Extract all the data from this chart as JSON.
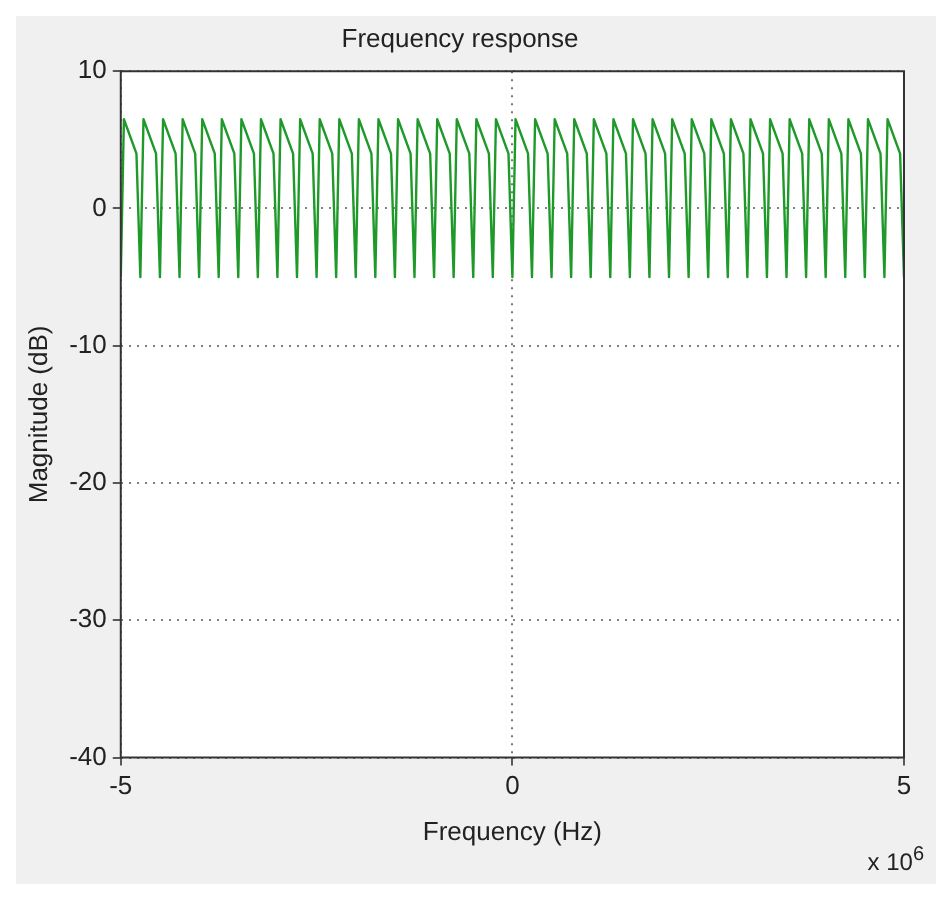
{
  "chart_data": {
    "type": "line",
    "title": "Frequency response",
    "xlabel": "Frequency (Hz)",
    "ylabel": "Magnitude (dB)",
    "annotations": [
      "x 10$^{6}$"
    ],
    "series": [
      {
        "color": "#1f9a2a",
        "x": [
          -5,
          -4.96,
          -4.8,
          -4.75,
          -4.71,
          -4.55,
          -4.5,
          -4.46,
          -4.3,
          -4.25,
          -4.21,
          -4.05,
          -4,
          -3.96,
          -3.8,
          -3.75,
          -3.71,
          -3.55,
          -3.5,
          -3.46,
          -3.3,
          -3.25,
          -3.21,
          -3.05,
          -3,
          -2.96,
          -2.8,
          -2.75,
          -2.71,
          -2.55,
          -2.5,
          -2.46,
          -2.3,
          -2.25,
          -2.21,
          -2.05,
          -2,
          -1.96,
          -1.8,
          -1.75,
          -1.71,
          -1.55,
          -1.5,
          -1.46,
          -1.3,
          -1.25,
          -1.21,
          -1.05,
          -1,
          -0.96,
          -0.8,
          -0.75,
          -0.71,
          -0.55,
          -0.5,
          -0.46,
          -0.3,
          -0.25,
          -0.21,
          -0.05,
          0,
          0.04,
          0.2,
          0.25,
          0.29,
          0.45,
          0.5,
          0.54,
          0.7,
          0.75,
          0.79,
          0.95,
          1,
          1.04,
          1.2,
          1.25,
          1.29,
          1.45,
          1.5,
          1.54,
          1.7,
          1.75,
          1.79,
          1.95,
          2,
          2.04,
          2.2,
          2.25,
          2.29,
          2.45,
          2.5,
          2.54,
          2.7,
          2.75,
          2.79,
          2.95,
          3,
          3.04,
          3.2,
          3.25,
          3.29,
          3.45,
          3.5,
          3.54,
          3.7,
          3.75,
          3.79,
          3.95,
          4,
          4.04,
          4.2,
          4.25,
          4.29,
          4.45,
          4.5,
          4.54,
          4.7,
          4.75,
          4.79,
          4.95,
          5
        ],
        "values": [
          -5,
          6.5,
          4,
          -5,
          6.5,
          4,
          -5,
          6.5,
          4,
          -5,
          6.5,
          4,
          -5,
          6.5,
          4,
          -5,
          6.5,
          4,
          -5,
          6.5,
          4,
          -5,
          6.5,
          4,
          -5,
          6.5,
          4,
          -5,
          6.5,
          4,
          -5,
          6.5,
          4,
          -5,
          6.5,
          4,
          -5,
          6.5,
          4,
          -5,
          6.5,
          4,
          -5,
          6.5,
          4,
          -5,
          6.5,
          4,
          -5,
          6.5,
          4,
          -5,
          6.5,
          4,
          -5,
          6.5,
          4,
          -5,
          6.5,
          4,
          -5,
          6.5,
          4,
          -5,
          6.5,
          4,
          -5,
          6.5,
          4,
          -5,
          6.5,
          4,
          -5,
          6.5,
          4,
          -5,
          6.5,
          4,
          -5,
          6.5,
          4,
          -5,
          6.5,
          4,
          -5,
          6.5,
          4,
          -5,
          6.5,
          4,
          -5,
          6.5,
          4,
          -5,
          6.5,
          4,
          -5,
          6.5,
          4,
          -5,
          6.5,
          4,
          -5,
          6.5,
          4,
          -5,
          6.5,
          4,
          -5,
          6.5,
          4,
          -5,
          6.5,
          4,
          -5,
          6.5,
          4,
          -5,
          6.5,
          4,
          -5
        ]
      }
    ],
    "xlim": [
      -5,
      5
    ],
    "xticks": [
      -5,
      0,
      5
    ],
    "ylim": [
      -40,
      10
    ],
    "yticks": [
      -40,
      -30,
      -20,
      -10,
      0,
      10
    ],
    "grid": true,
    "legend": false,
    "marker": "none",
    "line_style": "solid"
  }
}
